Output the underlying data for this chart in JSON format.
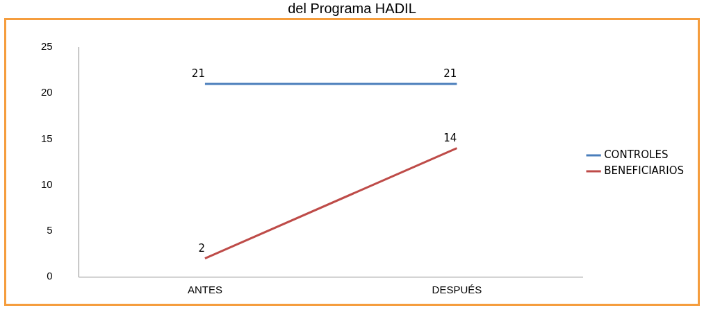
{
  "chart_data": {
    "type": "line",
    "title": "del Programa HADIL",
    "categories": [
      "ANTES",
      "DESPUÉS"
    ],
    "series": [
      {
        "name": "CONTROLES",
        "color": "#4a7ebb",
        "values": [
          21,
          21
        ]
      },
      {
        "name": "BENEFICIARIOS",
        "color": "#be4b48",
        "values": [
          2,
          14
        ]
      }
    ],
    "ylim": [
      0,
      25
    ],
    "yticks": [
      0,
      5,
      10,
      15,
      20,
      25
    ],
    "grid": false,
    "legend": "right",
    "data_labels": true,
    "marker": "none"
  }
}
